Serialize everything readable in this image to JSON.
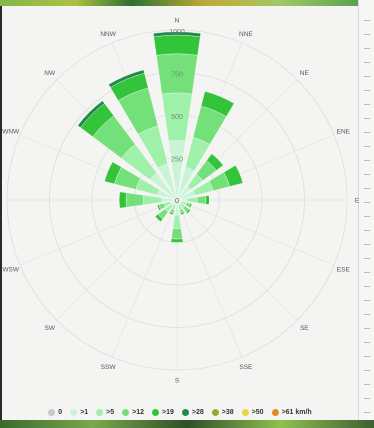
{
  "chart_data": {
    "type": "windrose",
    "directions": [
      "N",
      "NNE",
      "NE",
      "ENE",
      "E",
      "ESE",
      "SE",
      "SSE",
      "S",
      "SSW",
      "SW",
      "WSW",
      "W",
      "WNW",
      "NW",
      "NNW"
    ],
    "radial_ticks": [
      "250",
      "500",
      "750",
      "1000"
    ],
    "rmax": 1000,
    "bins": [
      {
        "label": "0",
        "color": "#c8c8c8"
      },
      {
        "label": ">1",
        "color": "#c8f5d6"
      },
      {
        "label": ">5",
        "color": "#9ff0a8"
      },
      {
        "label": ">12",
        "color": "#73e07a"
      },
      {
        "label": ">19",
        "color": "#34c43a"
      },
      {
        "label": ">28",
        "color": "#1f8a4c"
      },
      {
        "label": ">38",
        "color": "#8fae2e"
      },
      {
        "label": ">50",
        "color": "#e8d73a"
      },
      {
        "label": ">61 km/h",
        "color": "#e28a1e"
      }
    ],
    "values": [
      [
        0,
        350,
        280,
        230,
        110,
        20,
        0,
        0,
        0
      ],
      [
        0,
        200,
        180,
        190,
        90,
        0,
        0,
        0,
        0
      ],
      [
        0,
        100,
        90,
        100,
        50,
        0,
        0,
        0,
        0
      ],
      [
        0,
        110,
        110,
        100,
        80,
        0,
        0,
        0,
        0
      ],
      [
        0,
        60,
        60,
        50,
        20,
        0,
        0,
        0,
        0
      ],
      [
        0,
        30,
        30,
        20,
        10,
        0,
        0,
        0,
        0
      ],
      [
        0,
        30,
        30,
        30,
        10,
        0,
        0,
        0,
        0
      ],
      [
        0,
        30,
        30,
        20,
        10,
        0,
        0,
        0,
        0
      ],
      [
        0,
        90,
        80,
        60,
        20,
        0,
        0,
        0,
        0
      ],
      [
        0,
        30,
        30,
        20,
        10,
        0,
        0,
        0,
        0
      ],
      [
        0,
        40,
        50,
        50,
        20,
        0,
        0,
        0,
        0
      ],
      [
        0,
        40,
        40,
        30,
        10,
        0,
        0,
        0,
        0
      ],
      [
        0,
        90,
        110,
        100,
        40,
        0,
        0,
        0,
        0
      ],
      [
        0,
        120,
        130,
        130,
        60,
        0,
        0,
        0,
        0
      ],
      [
        0,
        200,
        210,
        210,
        90,
        20,
        0,
        0,
        0
      ],
      [
        0,
        220,
        230,
        230,
        90,
        20,
        0,
        0,
        0
      ]
    ]
  }
}
